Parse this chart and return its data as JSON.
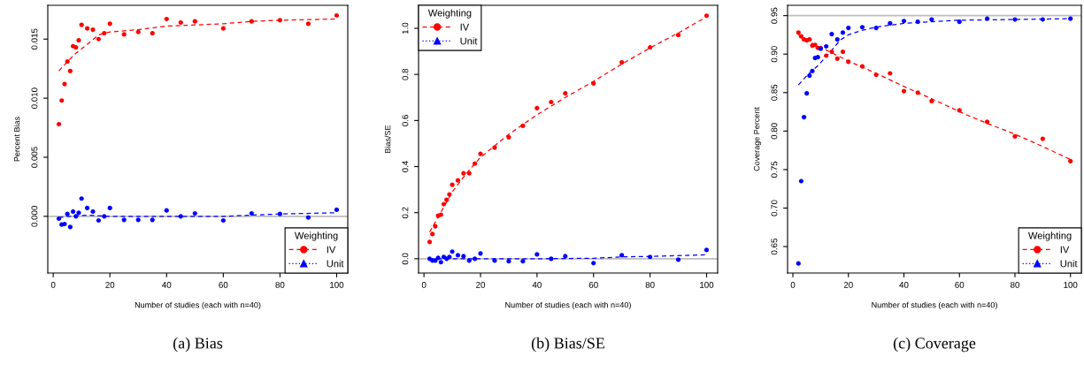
{
  "chart_data": [
    {
      "type": "scatter",
      "xlabel": "Number of studies (each with n=40)",
      "ylabel": "Percent Bias",
      "legend_title": "Weighting",
      "legend": "bottom right",
      "xlim": [
        -1.92,
        103.92
      ],
      "xticks": [
        0,
        20,
        40,
        60,
        80,
        100
      ],
      "ylim": [
        -0.0048,
        0.01786
      ],
      "yticks": [
        {
          "value": 0,
          "label": "0.000"
        },
        {
          "value": 0.005,
          "label": "0.005"
        },
        {
          "value": 0.01,
          "label": "0.010"
        },
        {
          "value": 0.015,
          "label": "0.015"
        }
      ],
      "ref_lines": [
        {
          "axis": "y",
          "value": 0,
          "color": "#bebebe"
        }
      ],
      "annotations": [
        "(a) Bias"
      ],
      "series": [
        {
          "name": "IV",
          "marker": "circle",
          "line_style": "dashed",
          "color": "#ff0000",
          "x": [
            2,
            3,
            4,
            5,
            6,
            7,
            8,
            9,
            10,
            12,
            14,
            16,
            18,
            20,
            25,
            30,
            35,
            40,
            45,
            50,
            60,
            70,
            80,
            90,
            100
          ],
          "values": [
            0.0078,
            0.0098,
            0.0112,
            0.0131,
            0.0123,
            0.0144,
            0.0143,
            0.0149,
            0.0162,
            0.0159,
            0.0158,
            0.015,
            0.0155,
            0.0163,
            0.0154,
            0.0156,
            0.0155,
            0.0167,
            0.0164,
            0.0165,
            0.0159,
            0.0165,
            0.0166,
            0.0163,
            0.017
          ]
        },
        {
          "name": "Unit",
          "marker": "triangle",
          "line_style": "dotted",
          "color": "#0000ff",
          "x": [
            2,
            3,
            4,
            5,
            6,
            7,
            8,
            9,
            10,
            12,
            14,
            16,
            18,
            20,
            25,
            30,
            35,
            40,
            45,
            50,
            60,
            70,
            80,
            90,
            100
          ],
          "values": [
            -0.0002,
            -0.0007,
            -0.00065,
            0.0002,
            -0.0009,
            0.0004,
            0.0,
            0.0003,
            0.0015,
            0.0007,
            0.0004,
            -0.00035,
            0.0,
            0.0007,
            -0.0003,
            -0.0003,
            -0.0003,
            0.0005,
            0.0,
            0.00025,
            -0.00035,
            0.00025,
            0.0002,
            -0.0001,
            0.00055
          ]
        },
        {
          "type": "line",
          "line_style": "dashed",
          "color": "#ff0000",
          "x": [
            2,
            5,
            8,
            12,
            16,
            18,
            20,
            30,
            40,
            60,
            70,
            80,
            100
          ],
          "values": [
            0.0123,
            0.0131,
            0.0138,
            0.01455,
            0.01535,
            0.0155,
            0.0156,
            0.0158,
            0.0161,
            0.0163,
            0.0165,
            0.0166,
            0.0167
          ]
        },
        {
          "type": "line",
          "line_style": "dashed",
          "color": "#0000ff",
          "x": [
            2,
            6,
            12,
            20,
            30,
            45,
            60,
            70,
            80,
            100
          ],
          "values": [
            -0.0001,
            0.0,
            0.0001,
            0.0,
            0.0,
            0.0,
            0.0,
            0.0001,
            0.0002,
            0.0003
          ]
        }
      ]
    },
    {
      "type": "scatter",
      "xlabel": "Number of studies (each with n=40)",
      "ylabel": "Bias/SE",
      "legend_title": "Weighting",
      "legend": "top left",
      "xlim": [
        -1.92,
        103.92
      ],
      "xticks": [
        0,
        20,
        40,
        60,
        80,
        100
      ],
      "ylim": [
        -0.062,
        1.1
      ],
      "yticks": [
        {
          "value": 0,
          "label": "0.0"
        },
        {
          "value": 0.2,
          "label": "0.2"
        },
        {
          "value": 0.4,
          "label": "0.4"
        },
        {
          "value": 0.6,
          "label": "0.6"
        },
        {
          "value": 0.8,
          "label": "0.8"
        },
        {
          "value": 1.0,
          "label": "1.0"
        }
      ],
      "ref_lines": [
        {
          "axis": "y",
          "value": 0,
          "color": "#bebebe"
        }
      ],
      "annotations": [
        "(b) Bias/SE"
      ],
      "series": [
        {
          "name": "IV",
          "marker": "circle",
          "line_style": "dashed",
          "color": "#ff0000",
          "x": [
            2,
            3,
            4,
            5,
            6,
            7,
            8,
            9,
            10,
            12,
            14,
            16,
            18,
            20,
            25,
            30,
            35,
            40,
            45,
            50,
            60,
            70,
            80,
            90,
            100
          ],
          "values": [
            0.073,
            0.107,
            0.141,
            0.187,
            0.191,
            0.237,
            0.256,
            0.279,
            0.321,
            0.34,
            0.371,
            0.371,
            0.413,
            0.455,
            0.482,
            0.527,
            0.577,
            0.654,
            0.68,
            0.718,
            0.761,
            0.852,
            0.917,
            0.971,
            1.055
          ]
        },
        {
          "name": "Unit",
          "marker": "triangle",
          "line_style": "dotted",
          "color": "#0000ff",
          "x": [
            2,
            3,
            4,
            5,
            6,
            7,
            8,
            9,
            10,
            12,
            14,
            16,
            18,
            20,
            25,
            30,
            35,
            40,
            45,
            50,
            60,
            70,
            80,
            90,
            100
          ],
          "values": [
            0.0,
            -0.008,
            -0.008,
            0.004,
            -0.015,
            0.008,
            0.0,
            0.008,
            0.031,
            0.015,
            0.011,
            -0.008,
            0.0,
            0.023,
            -0.008,
            -0.011,
            -0.011,
            0.019,
            0.0,
            0.011,
            -0.019,
            0.015,
            0.008,
            -0.004,
            0.038
          ]
        },
        {
          "type": "line",
          "line_style": "dashed",
          "color": "#ff0000",
          "x": [
            2,
            5,
            10,
            15,
            20,
            30,
            40,
            50,
            60,
            70,
            80,
            90,
            100
          ],
          "values": [
            0.116,
            0.18,
            0.29,
            0.37,
            0.44,
            0.54,
            0.625,
            0.7,
            0.77,
            0.845,
            0.915,
            0.98,
            1.05
          ]
        },
        {
          "type": "line",
          "line_style": "dashed",
          "color": "#0000ff",
          "x": [
            2,
            10,
            20,
            40,
            60,
            70,
            80,
            100
          ],
          "values": [
            0.0,
            0.0,
            0.0,
            0.0,
            0.002,
            0.008,
            0.01,
            0.017
          ]
        }
      ]
    },
    {
      "type": "scatter",
      "xlabel": "Number of studies (each with n=40)",
      "ylabel": "Coverage Percent",
      "legend_title": "Weighting",
      "legend": "bottom right",
      "xlim": [
        -1.92,
        103.92
      ],
      "xticks": [
        0,
        20,
        40,
        60,
        80,
        100
      ],
      "ylim": [
        0.6156,
        0.9634
      ],
      "yticks": [
        {
          "value": 0.65,
          "label": "0.65"
        },
        {
          "value": 0.7,
          "label": "0.70"
        },
        {
          "value": 0.75,
          "label": "0.75"
        },
        {
          "value": 0.8,
          "label": "0.80"
        },
        {
          "value": 0.85,
          "label": "0.85"
        },
        {
          "value": 0.9,
          "label": "0.90"
        },
        {
          "value": 0.95,
          "label": "0.95"
        }
      ],
      "ref_lines": [
        {
          "axis": "y",
          "value": 0.95,
          "color": "#bebebe"
        }
      ],
      "annotations": [
        "(c) Coverage"
      ],
      "series": [
        {
          "name": "IV",
          "marker": "circle",
          "line_style": "dashed",
          "color": "#ff0000",
          "x": [
            2,
            3,
            4,
            5,
            6,
            7,
            8,
            9,
            10,
            12,
            14,
            16,
            18,
            20,
            25,
            30,
            35,
            40,
            45,
            50,
            60,
            70,
            80,
            90,
            100
          ],
          "values": [
            0.928,
            0.923,
            0.919,
            0.918,
            0.919,
            0.911,
            0.912,
            0.908,
            0.908,
            0.898,
            0.903,
            0.894,
            0.903,
            0.89,
            0.884,
            0.873,
            0.875,
            0.852,
            0.85,
            0.839,
            0.827,
            0.812,
            0.793,
            0.79,
            0.761
          ]
        },
        {
          "name": "Unit",
          "marker": "triangle",
          "line_style": "dotted",
          "color": "#0000ff",
          "x": [
            2,
            3,
            4,
            5,
            6,
            7,
            8,
            9,
            10,
            12,
            14,
            16,
            18,
            20,
            25,
            30,
            35,
            40,
            45,
            50,
            60,
            70,
            80,
            90,
            100
          ],
          "values": [
            0.628,
            0.735,
            0.818,
            0.849,
            0.872,
            0.878,
            0.895,
            0.896,
            0.907,
            0.91,
            0.926,
            0.919,
            0.928,
            0.934,
            0.935,
            0.934,
            0.94,
            0.943,
            0.942,
            0.945,
            0.942,
            0.946,
            0.945,
            0.945,
            0.946
          ]
        },
        {
          "type": "line",
          "line_style": "dashed",
          "color": "#ff0000",
          "x": [
            2,
            8,
            15,
            20,
            30,
            40,
            50,
            62,
            70,
            80,
            90,
            100
          ],
          "values": [
            0.925,
            0.912,
            0.9,
            0.891,
            0.875,
            0.858,
            0.842,
            0.822,
            0.81,
            0.796,
            0.78,
            0.763
          ]
        },
        {
          "type": "line",
          "line_style": "dashed",
          "color": "#0000ff",
          "x": [
            2,
            5,
            9,
            14,
            17,
            20,
            25,
            30,
            40,
            60,
            100
          ],
          "values": [
            0.86,
            0.872,
            0.885,
            0.905,
            0.918,
            0.925,
            0.931,
            0.935,
            0.94,
            0.944,
            0.946
          ]
        }
      ]
    }
  ]
}
